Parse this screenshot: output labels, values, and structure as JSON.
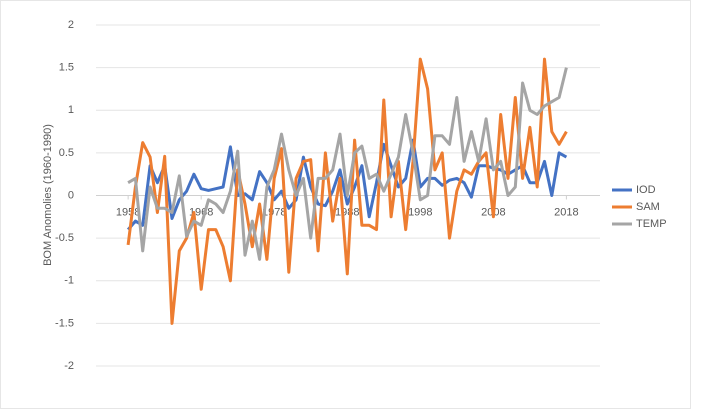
{
  "chart_data": {
    "type": "line",
    "y_axis_label": "BOM Anomolies (1960-1990)",
    "x": [
      1958,
      1959,
      1960,
      1961,
      1962,
      1963,
      1964,
      1965,
      1966,
      1967,
      1968,
      1969,
      1970,
      1971,
      1972,
      1973,
      1974,
      1975,
      1976,
      1977,
      1978,
      1979,
      1980,
      1981,
      1982,
      1983,
      1984,
      1985,
      1986,
      1987,
      1988,
      1989,
      1990,
      1991,
      1992,
      1993,
      1994,
      1995,
      1996,
      1997,
      1998,
      1999,
      2000,
      2001,
      2002,
      2003,
      2004,
      2005,
      2006,
      2007,
      2008,
      2009,
      2010,
      2011,
      2012,
      2013,
      2014,
      2015,
      2016,
      2017,
      2018
    ],
    "xlim": [
      1953.6,
      2022.6
    ],
    "xticks": [
      1958,
      1968,
      1978,
      1988,
      1998,
      2008,
      2018
    ],
    "ylim": [
      -2,
      2
    ],
    "yticks": [
      2,
      1.5,
      1,
      0.5,
      0,
      -0.5,
      -1,
      -1.5,
      -2
    ],
    "grid": true,
    "legend": "right",
    "series": [
      {
        "name": "IOD",
        "color": "#4472c4",
        "values": [
          -0.4,
          -0.3,
          -0.35,
          0.35,
          0.15,
          0.35,
          -0.27,
          -0.05,
          0.05,
          0.25,
          0.08,
          0.06,
          0.08,
          0.1,
          0.57,
          0.0,
          0.02,
          -0.05,
          0.28,
          0.15,
          -0.05,
          0.05,
          -0.15,
          -0.05,
          0.45,
          0.1,
          -0.1,
          -0.12,
          0.05,
          0.3,
          -0.1,
          0.1,
          0.35,
          -0.25,
          0.15,
          0.6,
          0.35,
          0.1,
          0.2,
          0.65,
          0.1,
          0.2,
          0.2,
          0.12,
          0.18,
          0.2,
          0.15,
          -0.02,
          0.35,
          0.35,
          0.32,
          0.3,
          0.25,
          0.3,
          0.35,
          0.15,
          0.15,
          0.4,
          0.0,
          0.5,
          0.45
        ]
      },
      {
        "name": "SAM",
        "color": "#ed7d31",
        "values": [
          -0.58,
          0.1,
          0.62,
          0.45,
          -0.2,
          0.46,
          -1.5,
          -0.65,
          -0.5,
          -0.2,
          -1.1,
          -0.4,
          -0.4,
          -0.6,
          -1.0,
          0.3,
          -0.1,
          -0.6,
          -0.1,
          -0.75,
          0.2,
          0.55,
          -0.9,
          0.2,
          0.4,
          0.42,
          -0.65,
          0.5,
          -0.3,
          0.2,
          -0.92,
          0.65,
          -0.35,
          -0.35,
          -0.4,
          1.12,
          -0.25,
          0.4,
          -0.4,
          0.4,
          1.6,
          1.25,
          0.3,
          0.5,
          -0.5,
          0.05,
          0.3,
          0.25,
          0.4,
          0.5,
          -0.25,
          0.95,
          0.2,
          1.15,
          0.2,
          0.8,
          0.1,
          1.6,
          0.75,
          0.6,
          0.75
        ]
      },
      {
        "name": "TEMP",
        "color": "#a5a5a5",
        "values": [
          0.15,
          0.2,
          -0.65,
          0.1,
          -0.15,
          -0.15,
          -0.2,
          0.23,
          -0.48,
          -0.3,
          -0.35,
          -0.05,
          -0.1,
          -0.2,
          0.05,
          0.52,
          -0.7,
          -0.3,
          -0.75,
          0.1,
          0.3,
          0.72,
          0.3,
          0.0,
          0.2,
          -0.5,
          0.2,
          0.2,
          0.3,
          0.72,
          0.0,
          0.5,
          0.58,
          0.2,
          0.25,
          0.05,
          0.25,
          0.45,
          0.95,
          0.5,
          -0.05,
          0.0,
          0.7,
          0.7,
          0.6,
          1.15,
          0.4,
          0.75,
          0.4,
          0.9,
          0.3,
          0.4,
          0.0,
          0.1,
          1.32,
          1.0,
          0.95,
          1.05,
          1.1,
          1.15,
          1.5
        ]
      }
    ]
  }
}
